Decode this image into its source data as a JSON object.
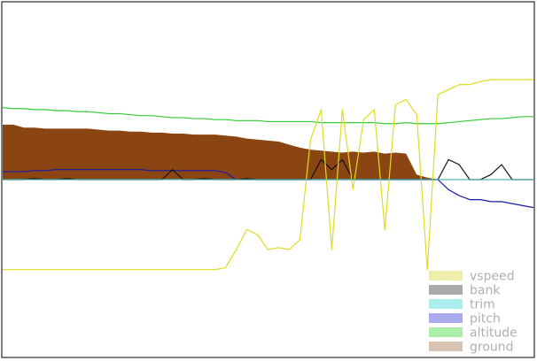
{
  "chart_data": {
    "type": "area",
    "grid": false,
    "legend_position": "bottom-right",
    "x": [
      0,
      0.02,
      0.04,
      0.06,
      0.08,
      0.1,
      0.12,
      0.14,
      0.16,
      0.18,
      0.2,
      0.22,
      0.24,
      0.26,
      0.28,
      0.3,
      0.32,
      0.34,
      0.36,
      0.38,
      0.4,
      0.42,
      0.44,
      0.46,
      0.48,
      0.5,
      0.52,
      0.54,
      0.56,
      0.58,
      0.6,
      0.62,
      0.64,
      0.66,
      0.68,
      0.7,
      0.72,
      0.74,
      0.76,
      0.78,
      0.8,
      0.82,
      0.84,
      0.86,
      0.88,
      0.9,
      0.92,
      0.94,
      0.96,
      0.98,
      1.0
    ],
    "series": [
      {
        "name": "ground",
        "color": "#8B4513",
        "legend_color": "#d8c3b3",
        "kind": "area",
        "values": [
          0.55,
          0.55,
          0.52,
          0.52,
          0.51,
          0.51,
          0.51,
          0.51,
          0.51,
          0.5,
          0.49,
          0.49,
          0.48,
          0.48,
          0.47,
          0.47,
          0.46,
          0.46,
          0.45,
          0.45,
          0.45,
          0.44,
          0.43,
          0.41,
          0.4,
          0.39,
          0.38,
          0.35,
          0.32,
          0.3,
          0.29,
          0.28,
          0.27,
          0.28,
          0.27,
          0.28,
          0.26,
          0.27,
          0.26,
          0.05,
          0.02,
          0.0,
          0.0,
          0.0,
          0.0,
          0.0,
          0.0,
          0.0,
          0.0,
          0.0,
          0.0
        ]
      },
      {
        "name": "altitude",
        "color": "#33cc33",
        "legend_color": "#aaeeaa",
        "kind": "line",
        "values": [
          0.72,
          0.71,
          0.71,
          0.7,
          0.7,
          0.69,
          0.69,
          0.68,
          0.68,
          0.67,
          0.66,
          0.66,
          0.65,
          0.64,
          0.64,
          0.63,
          0.62,
          0.62,
          0.61,
          0.61,
          0.6,
          0.6,
          0.59,
          0.59,
          0.59,
          0.58,
          0.58,
          0.58,
          0.58,
          0.58,
          0.57,
          0.57,
          0.57,
          0.57,
          0.57,
          0.57,
          0.56,
          0.56,
          0.57,
          0.56,
          0.56,
          0.56,
          0.57,
          0.58,
          0.59,
          0.6,
          0.61,
          0.61,
          0.62,
          0.63,
          0.63
        ]
      },
      {
        "name": "pitch",
        "color": "#1a1aa6",
        "legend_color": "#aaaaee",
        "kind": "line",
        "values": [
          0.08,
          0.08,
          0.08,
          0.09,
          0.09,
          0.1,
          0.1,
          0.1,
          0.1,
          0.1,
          0.1,
          0.1,
          0.1,
          0.1,
          0.09,
          0.09,
          0.09,
          0.09,
          0.09,
          0.09,
          0.09,
          0.07,
          0.0,
          0.0,
          0.0,
          0.0,
          0.0,
          0.0,
          0.0,
          0.0,
          0.0,
          0.0,
          0.0,
          0.0,
          0.0,
          0.0,
          0.0,
          0.0,
          0.0,
          0.0,
          0.0,
          0.0,
          -0.1,
          -0.16,
          -0.2,
          -0.2,
          -0.22,
          -0.22,
          -0.24,
          -0.26,
          -0.28
        ]
      },
      {
        "name": "trim",
        "color": "#55bbbb",
        "legend_color": "#aaeeee",
        "kind": "line",
        "values": [
          0,
          0,
          0,
          0,
          0,
          0,
          0,
          0,
          0,
          0,
          0,
          0,
          0,
          0,
          0,
          0,
          0,
          0,
          0,
          0,
          0,
          0,
          0,
          0,
          0,
          0,
          0,
          0,
          0,
          0,
          0,
          0,
          0,
          0,
          0,
          0,
          0,
          0,
          0,
          0,
          0,
          0,
          0,
          0,
          0,
          0,
          0,
          0,
          0,
          0,
          0
        ]
      },
      {
        "name": "bank",
        "color": "#111111",
        "legend_color": "#aaaaaa",
        "kind": "line",
        "values": [
          0.0,
          0.0,
          0.0,
          0.01,
          0.0,
          0.0,
          0.01,
          0.0,
          0.0,
          0.0,
          0.0,
          0.0,
          0.0,
          0.0,
          0.0,
          0.0,
          0.1,
          0.0,
          0.0,
          0.01,
          0.0,
          0.0,
          0.0,
          0.01,
          0.0,
          0.0,
          0.0,
          0.0,
          0.0,
          0.0,
          0.2,
          0.1,
          0.2,
          0.0,
          0.0,
          0.0,
          0.0,
          0.0,
          0.0,
          0.0,
          0.0,
          0.0,
          0.2,
          0.15,
          0.0,
          0.0,
          0.05,
          0.15,
          0.0,
          0.0,
          0.0
        ]
      },
      {
        "name": "vspeed",
        "color": "#dddd22",
        "legend_color": "#eeeeaa",
        "kind": "line",
        "values": [
          -0.9,
          -0.9,
          -0.9,
          -0.9,
          -0.9,
          -0.9,
          -0.9,
          -0.9,
          -0.9,
          -0.9,
          -0.9,
          -0.9,
          -0.9,
          -0.9,
          -0.9,
          -0.9,
          -0.9,
          -0.9,
          -0.9,
          -0.9,
          -0.9,
          -0.88,
          -0.7,
          -0.5,
          -0.55,
          -0.7,
          -0.68,
          -0.7,
          -0.6,
          0.4,
          0.7,
          -0.7,
          0.7,
          -0.1,
          0.6,
          0.7,
          -0.5,
          0.75,
          0.8,
          0.65,
          -0.9,
          0.85,
          0.9,
          0.95,
          0.95,
          0.98,
          1.0,
          1.0,
          1.0,
          1.0,
          1.0
        ]
      }
    ],
    "ylim": [
      -1.0,
      1.0
    ],
    "xlim": [
      0,
      1
    ],
    "legend": [
      {
        "label": "vspeed"
      },
      {
        "label": "bank"
      },
      {
        "label": "trim"
      },
      {
        "label": "pitch"
      },
      {
        "label": "altitude"
      },
      {
        "label": "ground"
      }
    ]
  }
}
